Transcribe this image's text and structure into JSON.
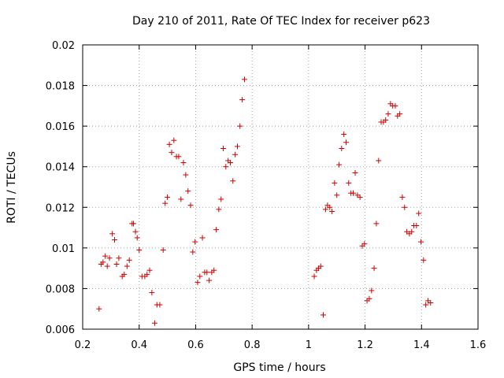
{
  "chart_data": {
    "type": "scatter",
    "title": "Day 210 of 2011, Rate Of TEC Index for receiver p623",
    "xlabel": "GPS time / hours",
    "ylabel": "ROTI / TECUs",
    "xlim": [
      0.2,
      1.6
    ],
    "ylim": [
      0.006,
      0.02
    ],
    "grid": true,
    "marker": "+",
    "marker_color": "#cc0000",
    "x_ticks": [
      "0.2",
      "0.4",
      "0.6",
      "0.8",
      "1",
      "1.2",
      "1.4",
      "1.6"
    ],
    "y_ticks": [
      "0.006",
      "0.008",
      "0.01",
      "0.012",
      "0.014",
      "0.016",
      "0.018",
      "0.02"
    ],
    "x_tick_values": [
      0.2,
      0.4,
      0.6,
      0.8,
      1.0,
      1.2,
      1.4,
      1.6
    ],
    "y_tick_values": [
      0.006,
      0.008,
      0.01,
      0.012,
      0.014,
      0.016,
      0.018,
      0.02
    ],
    "points": [
      [
        0.258,
        0.007
      ],
      [
        0.265,
        0.0092
      ],
      [
        0.272,
        0.0093
      ],
      [
        0.28,
        0.0096
      ],
      [
        0.287,
        0.0091
      ],
      [
        0.295,
        0.0095
      ],
      [
        0.305,
        0.0107
      ],
      [
        0.313,
        0.0104
      ],
      [
        0.32,
        0.0092
      ],
      [
        0.328,
        0.0095
      ],
      [
        0.34,
        0.0086
      ],
      [
        0.347,
        0.0087
      ],
      [
        0.357,
        0.0091
      ],
      [
        0.365,
        0.0094
      ],
      [
        0.375,
        0.0112
      ],
      [
        0.38,
        0.0112
      ],
      [
        0.387,
        0.0108
      ],
      [
        0.393,
        0.0105
      ],
      [
        0.4,
        0.0099
      ],
      [
        0.41,
        0.0086
      ],
      [
        0.42,
        0.0086
      ],
      [
        0.428,
        0.0087
      ],
      [
        0.437,
        0.0089
      ],
      [
        0.445,
        0.0078
      ],
      [
        0.455,
        0.0063
      ],
      [
        0.463,
        0.0072
      ],
      [
        0.473,
        0.0072
      ],
      [
        0.485,
        0.0099
      ],
      [
        0.492,
        0.0122
      ],
      [
        0.5,
        0.0125
      ],
      [
        0.507,
        0.0151
      ],
      [
        0.515,
        0.0147
      ],
      [
        0.523,
        0.0153
      ],
      [
        0.532,
        0.0145
      ],
      [
        0.54,
        0.0145
      ],
      [
        0.548,
        0.0124
      ],
      [
        0.557,
        0.0142
      ],
      [
        0.565,
        0.0136
      ],
      [
        0.573,
        0.0128
      ],
      [
        0.582,
        0.0121
      ],
      [
        0.59,
        0.0098
      ],
      [
        0.598,
        0.0103
      ],
      [
        0.607,
        0.0083
      ],
      [
        0.615,
        0.0086
      ],
      [
        0.624,
        0.0105
      ],
      [
        0.632,
        0.0088
      ],
      [
        0.64,
        0.0088
      ],
      [
        0.648,
        0.0084
      ],
      [
        0.657,
        0.0088
      ],
      [
        0.665,
        0.0089
      ],
      [
        0.673,
        0.0109
      ],
      [
        0.682,
        0.0119
      ],
      [
        0.69,
        0.0124
      ],
      [
        0.698,
        0.0149
      ],
      [
        0.707,
        0.014
      ],
      [
        0.715,
        0.0143
      ],
      [
        0.723,
        0.0142
      ],
      [
        0.732,
        0.0133
      ],
      [
        0.74,
        0.0146
      ],
      [
        0.748,
        0.015
      ],
      [
        0.757,
        0.016
      ],
      [
        0.765,
        0.0173
      ],
      [
        0.773,
        0.0183
      ],
      [
        1.02,
        0.0086
      ],
      [
        1.028,
        0.0089
      ],
      [
        1.035,
        0.009
      ],
      [
        1.043,
        0.0091
      ],
      [
        1.052,
        0.0067
      ],
      [
        1.06,
        0.0119
      ],
      [
        1.067,
        0.0121
      ],
      [
        1.075,
        0.012
      ],
      [
        1.083,
        0.0118
      ],
      [
        1.092,
        0.0132
      ],
      [
        1.1,
        0.0126
      ],
      [
        1.108,
        0.0141
      ],
      [
        1.117,
        0.0149
      ],
      [
        1.125,
        0.0156
      ],
      [
        1.133,
        0.0152
      ],
      [
        1.142,
        0.0132
      ],
      [
        1.15,
        0.0127
      ],
      [
        1.158,
        0.0127
      ],
      [
        1.165,
        0.0137
      ],
      [
        1.173,
        0.0126
      ],
      [
        1.182,
        0.0125
      ],
      [
        1.19,
        0.0101
      ],
      [
        1.198,
        0.0102
      ],
      [
        1.207,
        0.0074
      ],
      [
        1.215,
        0.0075
      ],
      [
        1.223,
        0.0079
      ],
      [
        1.232,
        0.009
      ],
      [
        1.24,
        0.0112
      ],
      [
        1.248,
        0.0143
      ],
      [
        1.257,
        0.0162
      ],
      [
        1.265,
        0.0162
      ],
      [
        1.273,
        0.0163
      ],
      [
        1.282,
        0.0166
      ],
      [
        1.29,
        0.0171
      ],
      [
        1.298,
        0.017
      ],
      [
        1.307,
        0.017
      ],
      [
        1.315,
        0.0165
      ],
      [
        1.323,
        0.0166
      ],
      [
        1.332,
        0.0125
      ],
      [
        1.34,
        0.012
      ],
      [
        1.348,
        0.0108
      ],
      [
        1.357,
        0.0107
      ],
      [
        1.365,
        0.0108
      ],
      [
        1.373,
        0.0111
      ],
      [
        1.382,
        0.0111
      ],
      [
        1.39,
        0.0117
      ],
      [
        1.398,
        0.0103
      ],
      [
        1.407,
        0.0094
      ],
      [
        1.415,
        0.0072
      ],
      [
        1.423,
        0.0074
      ],
      [
        1.432,
        0.0073
      ]
    ]
  }
}
